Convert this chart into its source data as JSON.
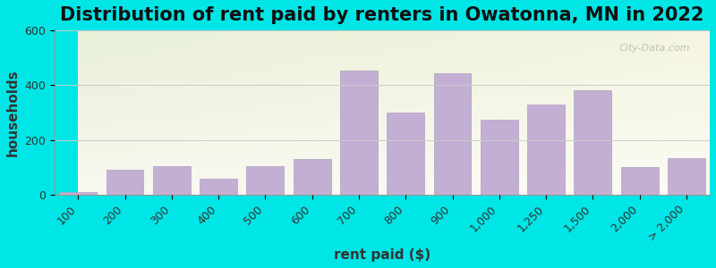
{
  "title": "Distribution of rent paid by renters in Owatonna, MN in 2022",
  "xlabel": "rent paid ($)",
  "ylabel": "households",
  "categories": [
    "100",
    "200",
    "300",
    "400",
    "500",
    "600",
    "700",
    "800",
    "900",
    "1,000",
    "1,250",
    "1,500",
    "2,000",
    "> 2,000"
  ],
  "values": [
    10,
    90,
    105,
    60,
    105,
    130,
    455,
    300,
    445,
    275,
    330,
    380,
    100,
    135
  ],
  "bar_color": "#c4afd4",
  "bar_edge_color": "#b09dc0",
  "ylim": [
    0,
    600
  ],
  "yticks": [
    0,
    200,
    400,
    600
  ],
  "background_outer": "#00e5e5",
  "background_inner_top_left": "#e8f0d8",
  "background_inner_top_right": "#f5f5e8",
  "background_inner_bottom": "#f0f0f0",
  "title_fontsize": 15,
  "axis_label_fontsize": 11,
  "tick_fontsize": 9,
  "watermark_text": "City-Data.com"
}
